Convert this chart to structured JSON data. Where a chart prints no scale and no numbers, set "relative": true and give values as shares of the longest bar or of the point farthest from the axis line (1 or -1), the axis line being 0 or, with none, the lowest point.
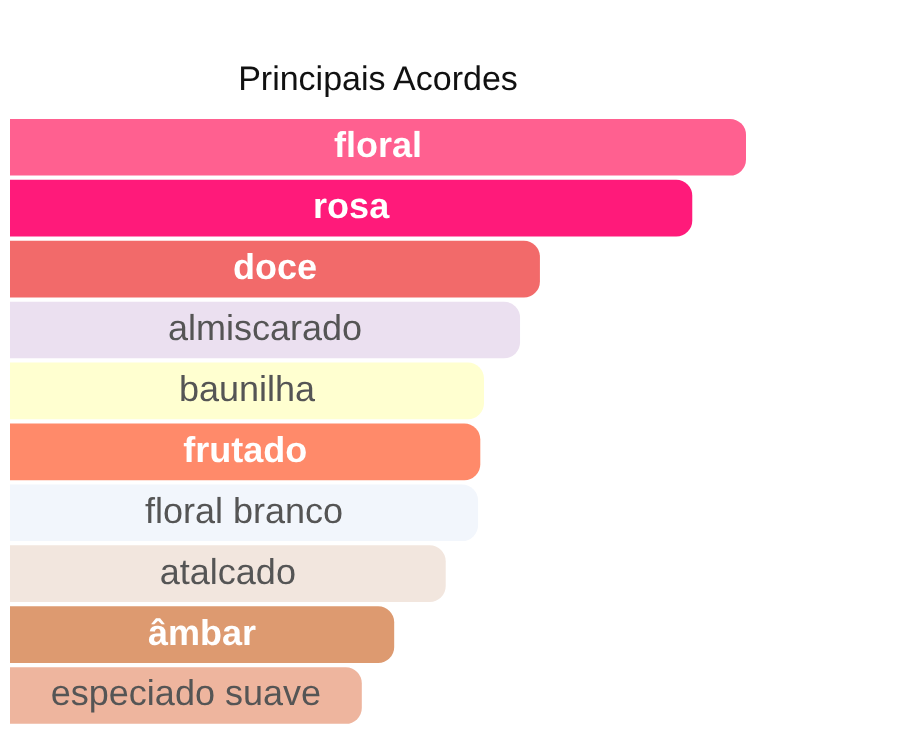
{
  "chart_data": {
    "type": "bar",
    "orientation": "horizontal",
    "relative": true,
    "title": "Principais Acordes",
    "categories": [
      "floral",
      "rosa",
      "doce",
      "almiscarado",
      "baunilha",
      "frutado",
      "floral branco",
      "atalcado",
      "âmbar",
      "especiado suave"
    ],
    "values": [
      1,
      0.927,
      0.72,
      0.693,
      0.644,
      0.639,
      0.636,
      0.592,
      0.522,
      0.478
    ],
    "colors": [
      "#ff6090",
      "#ff1a7a",
      "#f26a6a",
      "#ebe0f0",
      "#ffffd0",
      "#ff8a6a",
      "#f2f6fc",
      "#f2e6de",
      "#dd9a70",
      "#eeb59e"
    ],
    "legend": false
  }
}
